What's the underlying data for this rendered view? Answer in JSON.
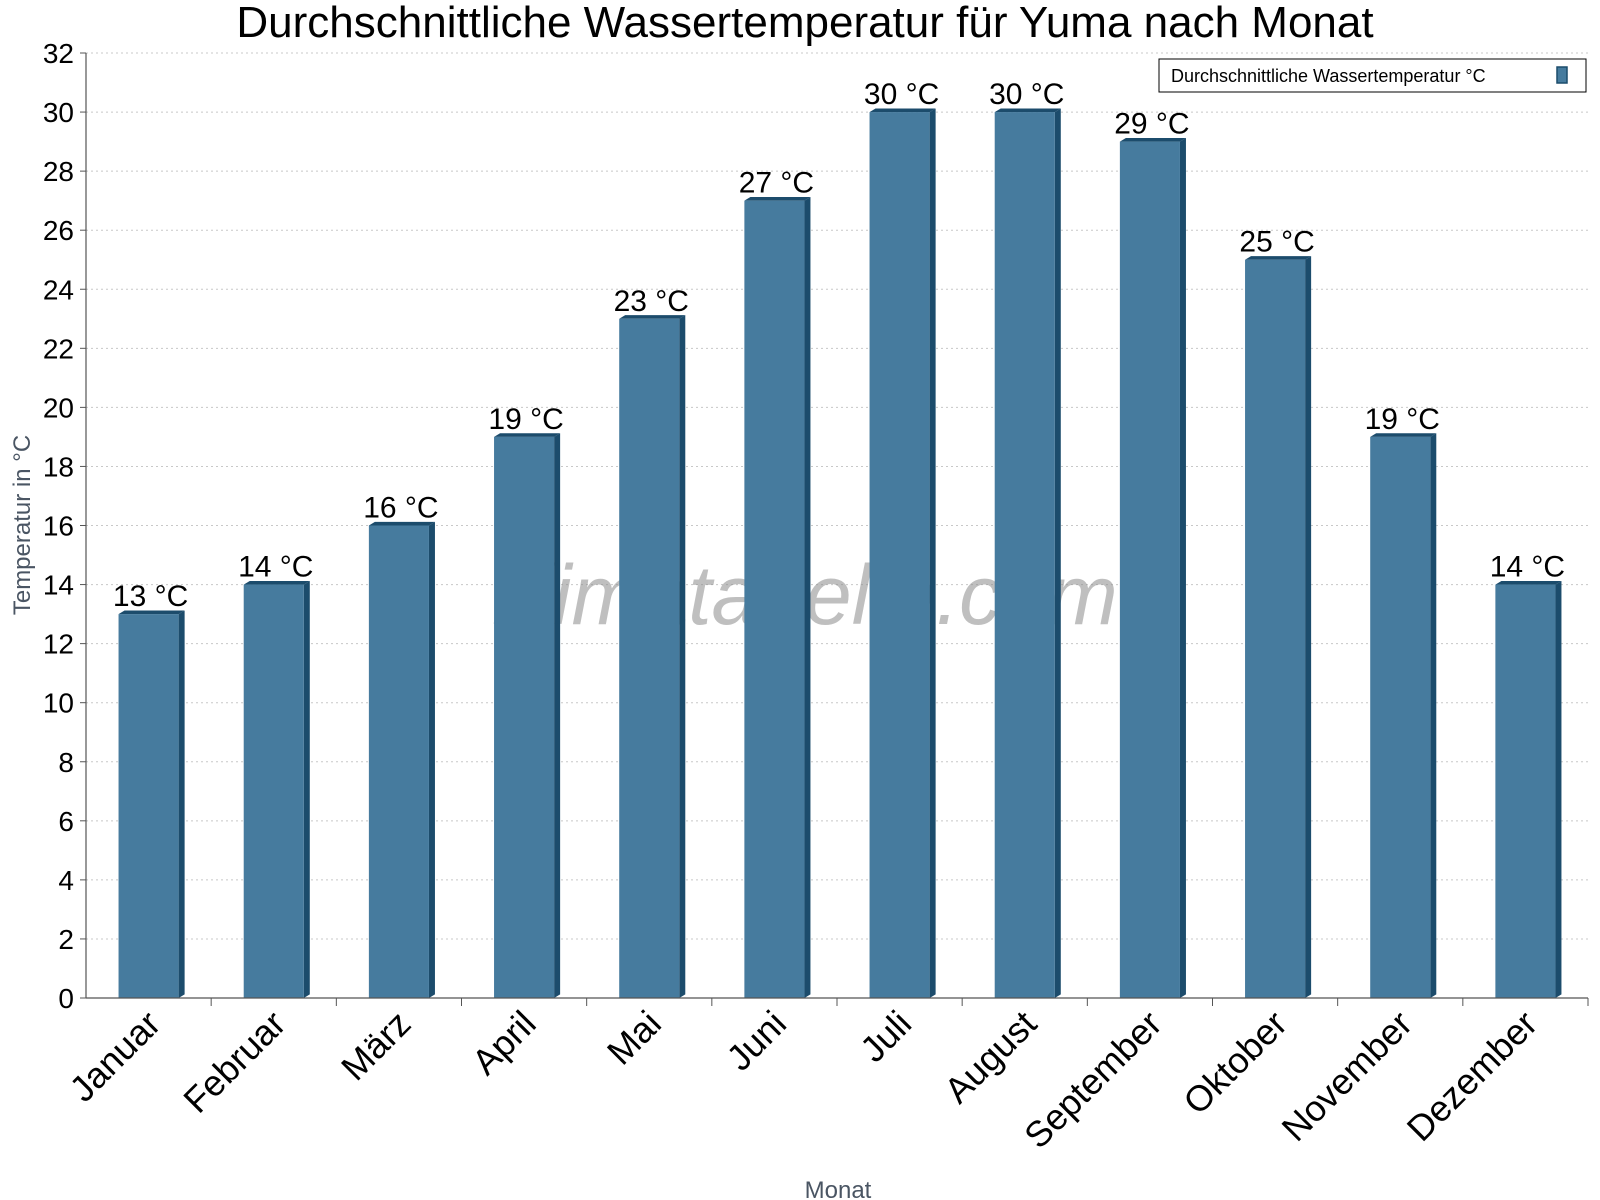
{
  "chart_data": {
    "type": "bar",
    "title": "Durchschnittliche Wassertemperatur für Yuma nach Monat",
    "xlabel": "Monat",
    "ylabel": "Temperatur in °C",
    "ylim": [
      0,
      32
    ],
    "ytick_step": 2,
    "grid": true,
    "legend": "top-right",
    "categories": [
      "Januar",
      "Februar",
      "März",
      "April",
      "Mai",
      "Juni",
      "Juli",
      "August",
      "September",
      "Oktober",
      "November",
      "Dezember"
    ],
    "series": [
      {
        "name": "Durchschnittliche Wassertemperatur °C",
        "values": [
          13,
          14,
          16,
          19,
          23,
          27,
          30,
          30,
          29,
          25,
          19,
          14
        ],
        "labels": [
          "13 °C",
          "14 °C",
          "16 °C",
          "19 °C",
          "23 °C",
          "27 °C",
          "30 °C",
          "30 °C",
          "29 °C",
          "25 °C",
          "19 °C",
          "14 °C"
        ]
      }
    ],
    "colors": {
      "bar": "#467b9e",
      "bar_side": "#1c4c6c",
      "grid": "#c8c8c8"
    }
  },
  "watermark": "klimatabelle.com"
}
